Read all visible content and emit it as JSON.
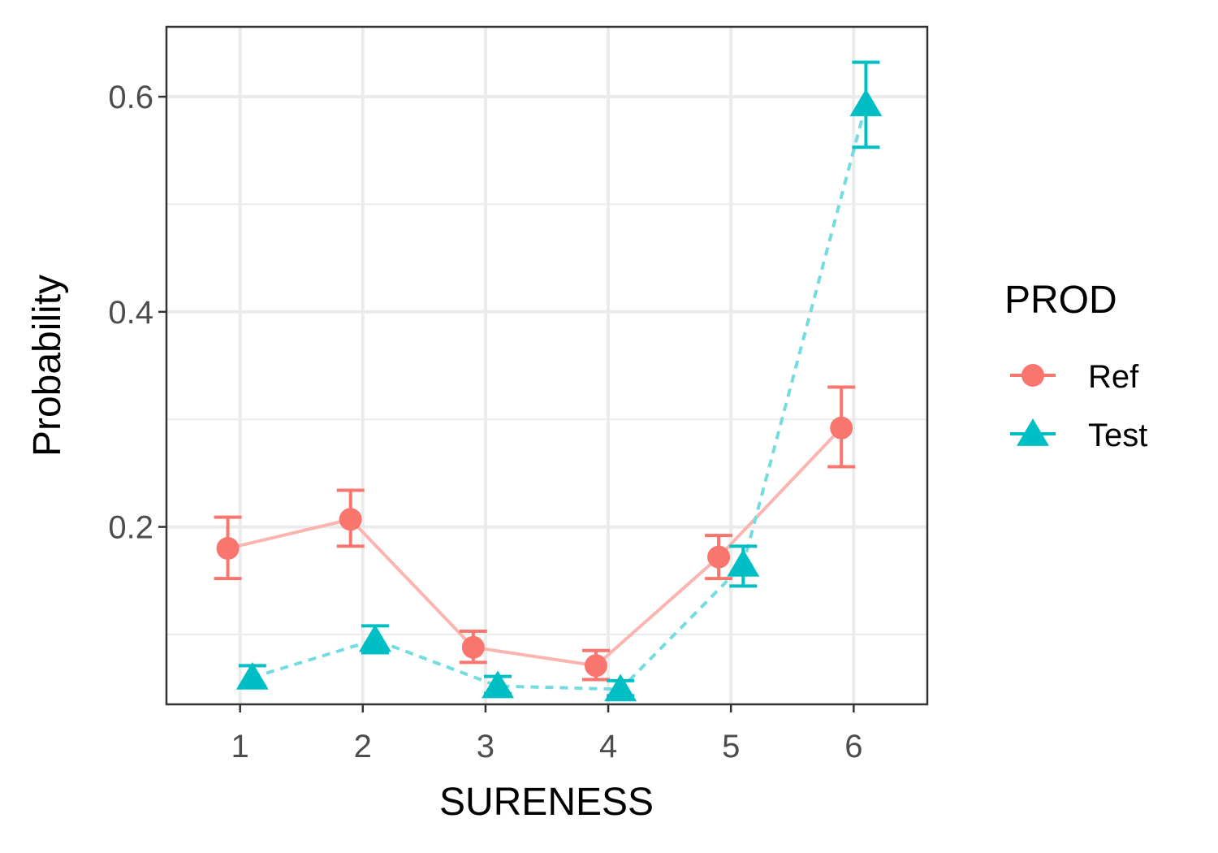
{
  "chart_data": {
    "type": "line",
    "xlabel": "SURENESS",
    "ylabel": "Probability",
    "x": [
      1,
      2,
      3,
      4,
      5,
      6
    ],
    "x_ticks": [
      "1",
      "2",
      "3",
      "4",
      "5",
      "6"
    ],
    "xlim": [
      0.4,
      6.6
    ],
    "ylim": [
      0.035,
      0.665
    ],
    "y_ticks": [
      "0.2",
      "0.4",
      "0.6"
    ],
    "grid": true,
    "legend": {
      "title": "PROD",
      "placement": "right"
    },
    "series": [
      {
        "name": "Ref",
        "color": "#F8766D",
        "marker": "circle",
        "line_style": "solid",
        "values": [
          0.18,
          0.207,
          0.088,
          0.071,
          0.172,
          0.292
        ],
        "err_low": [
          0.152,
          0.182,
          0.074,
          0.058,
          0.152,
          0.256
        ],
        "err_high": [
          0.209,
          0.234,
          0.103,
          0.085,
          0.192,
          0.33
        ]
      },
      {
        "name": "Test",
        "color": "#00BFC4",
        "marker": "triangle",
        "line_style": "dashed",
        "values": [
          0.06,
          0.095,
          0.052,
          0.049,
          0.165,
          0.593
        ],
        "err_low": [
          0.052,
          0.083,
          0.045,
          0.043,
          0.145,
          0.553
        ],
        "err_high": [
          0.071,
          0.108,
          0.061,
          0.057,
          0.182,
          0.632
        ]
      }
    ]
  }
}
